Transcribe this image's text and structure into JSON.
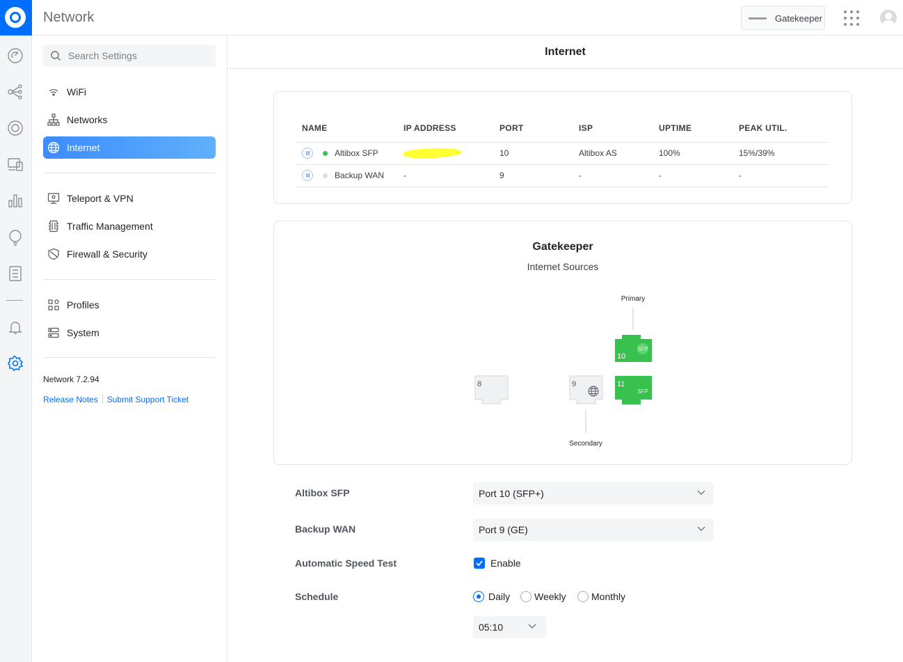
{
  "app": {
    "title": "Network",
    "device_name": "Gatekeeper"
  },
  "rail": {
    "icons": [
      "dashboard-icon",
      "topology-icon",
      "devices-icon",
      "clients-icon",
      "statistics-icon",
      "insights-icon",
      "logs-icon",
      "notifications-icon",
      "settings-icon"
    ],
    "active": "settings-icon",
    "accent": "#006fff"
  },
  "sidebar": {
    "search_placeholder": "Search Settings",
    "group1": [
      {
        "label": "WiFi",
        "icon": "wifi-icon"
      },
      {
        "label": "Networks",
        "icon": "networks-icon"
      },
      {
        "label": "Internet",
        "icon": "globe-icon",
        "active": true
      }
    ],
    "group2": [
      {
        "label": "Teleport & VPN",
        "icon": "vpn-icon"
      },
      {
        "label": "Traffic Management",
        "icon": "traffic-icon"
      },
      {
        "label": "Firewall & Security",
        "icon": "shield-icon"
      }
    ],
    "group3": [
      {
        "label": "Profiles",
        "icon": "profiles-icon"
      },
      {
        "label": "System",
        "icon": "system-icon"
      }
    ],
    "version": "Network 7.2.94",
    "release_notes": "Release Notes",
    "support_ticket": "Submit Support Ticket"
  },
  "page": {
    "title": "Internet"
  },
  "wan_table": {
    "headers": [
      "NAME",
      "IP ADDRESS",
      "PORT",
      "ISP",
      "UPTIME",
      "PEAK UTIL."
    ],
    "rows": [
      {
        "name": "Altibox SFP",
        "status_color": "#38c14f",
        "ip": "",
        "ip_redacted": true,
        "port": "10",
        "isp": "Altibox AS",
        "uptime": "100%",
        "peak": "15%/39%"
      },
      {
        "name": "Backup WAN",
        "status_color": "#dcdee1",
        "ip": "-",
        "ip_redacted": false,
        "port": "9",
        "isp": "-",
        "uptime": "-",
        "peak": "-"
      }
    ]
  },
  "diagram": {
    "title": "Gatekeeper",
    "subtitle": "Internet Sources",
    "primary_label": "Primary",
    "secondary_label": "Secondary",
    "ports": [
      {
        "number": "8",
        "type": "rj45",
        "state": "idle"
      },
      {
        "number": "9",
        "type": "rj45",
        "state": "secondary",
        "badge": "globe-icon"
      },
      {
        "number": "10",
        "type": "sfp",
        "label": "SFP",
        "state": "primary"
      },
      {
        "number": "11",
        "type": "sfp",
        "label": "SFP",
        "state": "active"
      }
    ],
    "active_color": "#38c14f",
    "idle_color": "#f0f1f2"
  },
  "form": {
    "primary_label": "Altibox SFP",
    "primary_value": "Port 10 (SFP+)",
    "backup_label": "Backup WAN",
    "backup_value": "Port 9 (GE)",
    "speedtest_label": "Automatic Speed Test",
    "speedtest_option": "Enable",
    "speedtest_enabled": true,
    "schedule_label": "Schedule",
    "schedule_options": [
      "Daily",
      "Weekly",
      "Monthly"
    ],
    "schedule_selected": "Daily",
    "time_value": "05:10"
  }
}
